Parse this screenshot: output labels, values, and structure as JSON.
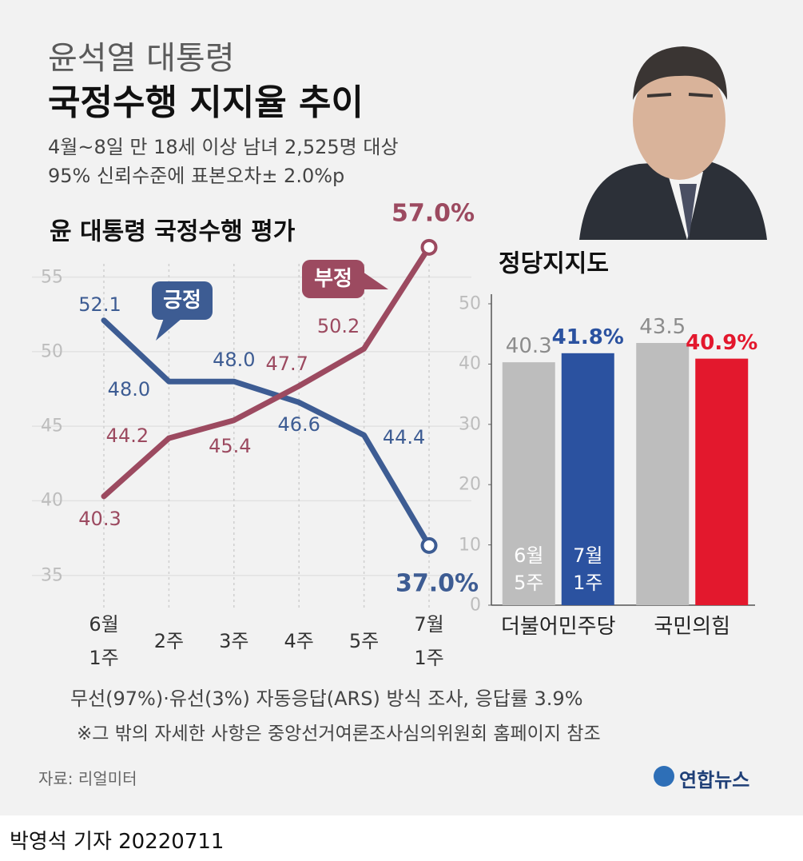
{
  "header": {
    "title_line1": "윤석열 대통령",
    "title_line2": "국정수행 지지율 추이",
    "subtitle_line1": "4월~8일 만 18세 이상 남녀 2,525명 대상",
    "subtitle_line2": "95% 신뢰수준에 표본오차± 2.0%p"
  },
  "chart_data": [
    {
      "type": "line",
      "title": "윤 대통령 국정수행 평가",
      "categories": [
        "6월\n1주",
        "2주",
        "3주",
        "4주",
        "5주",
        "7월\n1주"
      ],
      "series": [
        {
          "name": "긍정",
          "color": "#3d5c93",
          "values": [
            52.1,
            48.0,
            48.0,
            46.6,
            44.4,
            37.0
          ],
          "value_labels": [
            "52.1",
            "48.0",
            "48.0",
            "46.6",
            "44.4",
            "37.0%"
          ]
        },
        {
          "name": "부정",
          "color": "#9c4a60",
          "values": [
            40.3,
            44.2,
            45.4,
            47.7,
            50.2,
            57.0
          ],
          "value_labels": [
            "40.3",
            "44.2",
            "45.4",
            "47.7",
            "50.2",
            "57.0%"
          ]
        }
      ],
      "ylim": [
        33,
        57.5
      ],
      "yticks": [
        35,
        40,
        45,
        50,
        55
      ],
      "grid": true
    },
    {
      "type": "bar",
      "title": "정당지지도",
      "categories": [
        "더불어민주당",
        "국민의힘"
      ],
      "series": [
        {
          "name": "6월\n5주",
          "color": "#bdbdbd",
          "values": [
            40.3,
            43.5
          ],
          "value_labels": [
            "40.3",
            "43.5"
          ]
        },
        {
          "name": "7월\n1주",
          "colors": [
            "#2b52a0",
            "#e3182d"
          ],
          "values": [
            41.8,
            40.9
          ],
          "value_labels": [
            "41.8%",
            "40.9%"
          ]
        }
      ],
      "ylim": [
        0,
        50
      ],
      "yticks": [
        0,
        10,
        20,
        30,
        40,
        50
      ]
    }
  ],
  "footer": {
    "note1": "무선(97%)·유선(3%) 자동응답(ARS) 방식 조사, 응답률 3.9%",
    "note2": "※그 밖의 자세한 사항은 중앙선거여론조사심의위원회 홈페이지 참조",
    "source": "자료: 리얼미터",
    "logo": "연합뉴스",
    "byline": "박영석 기자 20220711"
  }
}
